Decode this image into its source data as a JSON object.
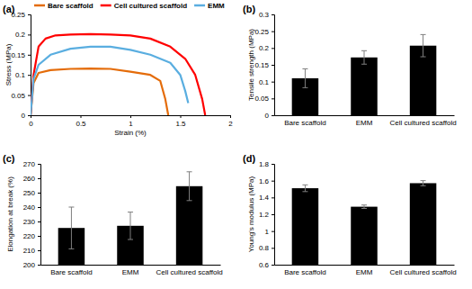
{
  "chart_data": [
    {
      "type": "line",
      "title": "(a)",
      "xlabel": "Strain (%)",
      "ylabel": "Stress (MPa)",
      "xlim": [
        0,
        2
      ],
      "xticks": [
        0,
        0.5,
        1,
        1.5,
        2
      ],
      "ylim": [
        0,
        0.25
      ],
      "yticks": [
        0,
        0.05,
        0.1,
        0.15,
        0.2,
        0.25
      ],
      "legend": "top",
      "series": [
        {
          "name": "Bare scaffold",
          "color": "#e46c0a",
          "x": [
            0,
            0.03,
            0.08,
            0.2,
            0.4,
            0.6,
            0.8,
            1.0,
            1.2,
            1.3,
            1.35,
            1.38
          ],
          "values": [
            0,
            0.08,
            0.105,
            0.112,
            0.115,
            0.116,
            0.115,
            0.108,
            0.1,
            0.085,
            0.04,
            0
          ]
        },
        {
          "name": "Cell cultured scaffold",
          "color": "#ff0000",
          "x": [
            0,
            0.03,
            0.08,
            0.15,
            0.25,
            0.4,
            0.6,
            0.8,
            1.0,
            1.2,
            1.4,
            1.55,
            1.65,
            1.72,
            1.75
          ],
          "values": [
            0,
            0.1,
            0.17,
            0.19,
            0.198,
            0.2,
            0.201,
            0.2,
            0.198,
            0.19,
            0.17,
            0.14,
            0.1,
            0.04,
            0
          ]
        },
        {
          "name": "EMM",
          "color": "#5aaee0",
          "x": [
            0,
            0.03,
            0.08,
            0.2,
            0.4,
            0.6,
            0.8,
            1.0,
            1.2,
            1.4,
            1.5,
            1.55,
            1.58
          ],
          "values": [
            0,
            0.09,
            0.125,
            0.15,
            0.165,
            0.17,
            0.17,
            0.162,
            0.15,
            0.13,
            0.1,
            0.06,
            0.03
          ]
        }
      ]
    },
    {
      "type": "bar",
      "title": "(b)",
      "ylabel": "Tensile strength (MPa)",
      "categories": [
        "Bare scaffold",
        "EMM",
        "Cell cultured scaffold"
      ],
      "values": [
        0.11,
        0.172,
        0.207
      ],
      "errors": [
        0.028,
        0.02,
        0.033
      ],
      "color": "#000000",
      "ylim": [
        0,
        0.3
      ],
      "yticks": [
        0,
        0.05,
        0.1,
        0.15,
        0.2,
        0.25,
        0.3
      ]
    },
    {
      "type": "bar",
      "title": "(c)",
      "ylabel": "Elongation at break (%)",
      "categories": [
        "Bare scaffold",
        "EMM",
        "Cell cultured scaffold"
      ],
      "values": [
        225.5,
        227,
        254.5
      ],
      "errors": [
        14.5,
        9.5,
        10
      ],
      "color": "#000000",
      "ylim": [
        200,
        270
      ],
      "yticks": [
        200,
        210,
        220,
        230,
        240,
        250,
        260,
        270
      ]
    },
    {
      "type": "bar",
      "title": "(d)",
      "ylabel": "Young's modulus (MPa)",
      "categories": [
        "Bare scaffold",
        "EMM",
        "Cell cultured scaffold"
      ],
      "values": [
        1.51,
        1.29,
        1.57
      ],
      "errors": [
        0.04,
        0.02,
        0.03
      ],
      "color": "#000000",
      "ylim": [
        0.6,
        1.8
      ],
      "yticks": [
        0.6,
        0.8,
        1,
        1.2,
        1.4,
        1.6,
        1.8
      ]
    }
  ]
}
